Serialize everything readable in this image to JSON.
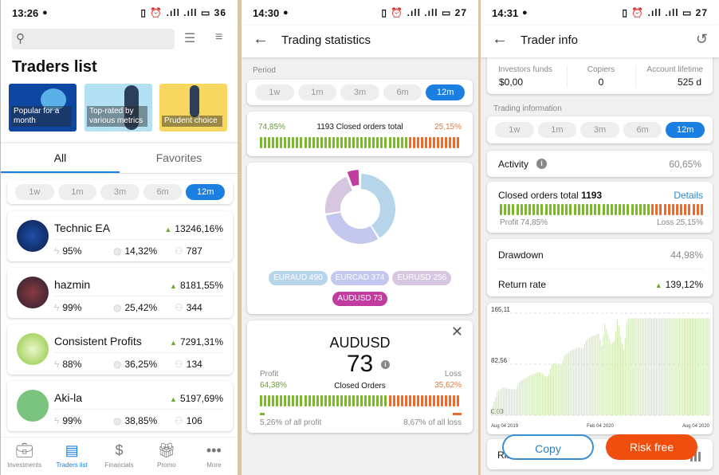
{
  "periods": [
    "1w",
    "1m",
    "3m",
    "6m",
    "12m"
  ],
  "active_period": "12m",
  "traders_screen": {
    "status": {
      "time": "13:26",
      "battery": "36"
    },
    "search": {
      "placeholder": ""
    },
    "title": "Traders list",
    "banners": [
      {
        "label": "Popular for a month",
        "color": "#0d47a1"
      },
      {
        "label": "Top-rated by various metrics",
        "color": "#b3e0f2"
      },
      {
        "label": "Prudent choice",
        "color": "#f7d75f"
      }
    ],
    "tabs": [
      {
        "label": "All",
        "active": true
      },
      {
        "label": "Favorites",
        "active": false
      }
    ],
    "traders": [
      {
        "name": "Technic EA",
        "return": "13246,16%",
        "activity": "95%",
        "drawdown": "14,32%",
        "copiers": "787"
      },
      {
        "name": "hazmin",
        "return": "8181,55%",
        "activity": "99%",
        "drawdown": "25,42%",
        "copiers": "344"
      },
      {
        "name": "Consistent Profits",
        "return": "7291,31%",
        "activity": "88%",
        "drawdown": "36,25%",
        "copiers": "134"
      },
      {
        "name": "Aki-la",
        "return": "5197,69%",
        "activity": "99%",
        "drawdown": "38,85%",
        "copiers": "106"
      }
    ],
    "nav": [
      {
        "label": "Investments",
        "icon": "briefcase-icon"
      },
      {
        "label": "Traders list",
        "icon": "list-icon",
        "active": true
      },
      {
        "label": "Financials",
        "icon": "dollar-icon"
      },
      {
        "label": "Promo",
        "icon": "gift-icon"
      },
      {
        "label": "More",
        "icon": "more-icon"
      }
    ]
  },
  "stats_screen": {
    "status": {
      "time": "14:30",
      "battery": "27"
    },
    "title": "Trading statistics",
    "period_label": "Period",
    "closed": {
      "profit": "74,85%",
      "total": "1193 Closed orders total",
      "loss": "25,15%",
      "profit_ratio": 0.7485
    },
    "instruments": [
      {
        "name": "EURAUD",
        "count": 490,
        "label": "EURAUD 490",
        "color": "#b6d4ea"
      },
      {
        "name": "EURCAD",
        "count": 374,
        "label": "EURCAD 374",
        "color": "#c5c8ee"
      },
      {
        "name": "EURUSD",
        "count": 256,
        "label": "EURUSD 256",
        "color": "#d7c6e0"
      },
      {
        "name": "AUDUSD",
        "count": 73,
        "label": "AUDUSD 73",
        "color": "#c23b9f",
        "selected": true
      }
    ],
    "detail": {
      "symbol": "AUDUSD",
      "count": "73",
      "count_label": "Closed Orders",
      "profit_label": "Profit",
      "profit": "64,38%",
      "loss_label": "Loss",
      "loss": "35,62%",
      "profit_ratio": 0.6438,
      "profit_share": "5,26% of all profit",
      "loss_share": "8,67% of all loss"
    }
  },
  "info_screen": {
    "status": {
      "time": "14:31",
      "battery": "27"
    },
    "title": "Trader info",
    "funds": [
      {
        "label": "Investors funds",
        "value": "$0,00"
      },
      {
        "label": "Copiers",
        "value": "0"
      },
      {
        "label": "Account lifetime",
        "value": "525 d"
      }
    ],
    "trading_label": "Trading information",
    "activity": {
      "label": "Activity",
      "value": "60,65%"
    },
    "closed": {
      "label": "Closed orders total ",
      "total": "1193",
      "details": "Details",
      "profit": "Profit 74,85%",
      "loss": "Loss 25,15%",
      "profit_ratio": 0.7485
    },
    "drawdown": {
      "label": "Drawdown",
      "value": "44,98%"
    },
    "return_rate": {
      "label": "Return rate",
      "value": "139,12%"
    },
    "risk_label": "Ris",
    "copy_label": "Copy",
    "risk_free_label": "Risk free",
    "chart_data": {
      "type": "area",
      "ylim": [
        0,
        165.11
      ],
      "yticks": [
        "165,11",
        "82,56",
        "0,00"
      ],
      "xticks": [
        "Aug 04 2019",
        "Feb 04 2020",
        "Aug 04 2020"
      ],
      "grid": true,
      "color": "#cde8b0",
      "values": [
        8,
        22,
        38,
        42,
        45,
        44,
        42,
        41,
        42,
        55,
        58,
        60,
        64,
        66,
        68,
        70,
        69,
        63,
        62,
        80,
        86,
        82,
        80,
        95,
        100,
        104,
        106,
        108,
        110,
        108,
        120,
        125,
        128,
        130,
        132,
        112,
        148,
        130,
        115,
        120,
        158,
        125,
        105,
        157,
        157,
        157,
        157,
        157,
        157,
        157,
        157,
        157,
        157,
        157,
        157,
        157,
        157,
        157,
        157,
        157,
        157,
        157,
        157,
        157,
        157,
        157,
        157,
        157,
        157,
        157
      ]
    }
  }
}
